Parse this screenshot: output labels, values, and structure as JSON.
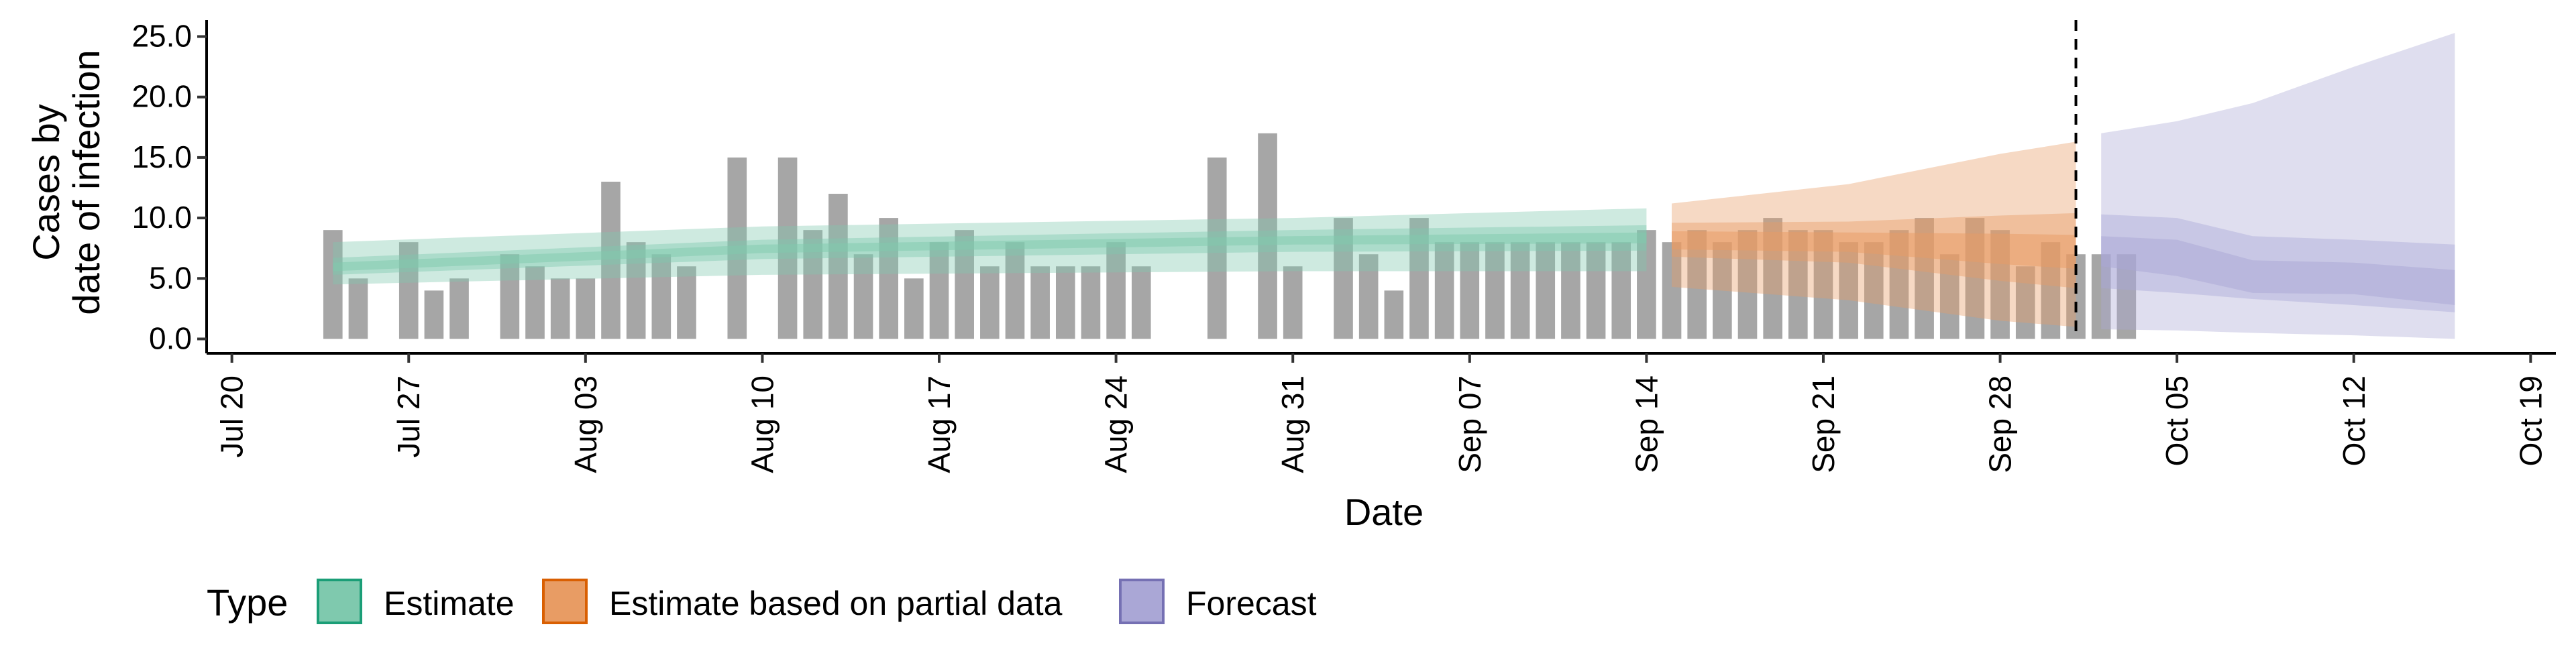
{
  "chart_data": {
    "type": "bar",
    "ylabel_lines": [
      "Cases by",
      "date of infection"
    ],
    "xlabel": "Date",
    "ylim": [
      0,
      26
    ],
    "yticks": [
      {
        "value": 0,
        "label": "0.0"
      },
      {
        "value": 5,
        "label": "5.0"
      },
      {
        "value": 10,
        "label": "10.0"
      },
      {
        "value": 15,
        "label": "15.0"
      },
      {
        "value": 20,
        "label": "20.0"
      },
      {
        "value": 25,
        "label": "25.0"
      }
    ],
    "xticks": [
      {
        "date": "2020-07-20",
        "label": "Jul 20"
      },
      {
        "date": "2020-07-27",
        "label": "Jul 27"
      },
      {
        "date": "2020-08-03",
        "label": "Aug 03"
      },
      {
        "date": "2020-08-10",
        "label": "Aug 10"
      },
      {
        "date": "2020-08-17",
        "label": "Aug 17"
      },
      {
        "date": "2020-08-24",
        "label": "Aug 24"
      },
      {
        "date": "2020-08-31",
        "label": "Aug 31"
      },
      {
        "date": "2020-09-07",
        "label": "Sep 07"
      },
      {
        "date": "2020-09-14",
        "label": "Sep 14"
      },
      {
        "date": "2020-09-21",
        "label": "Sep 21"
      },
      {
        "date": "2020-09-28",
        "label": "Sep 28"
      },
      {
        "date": "2020-10-05",
        "label": "Oct 05"
      },
      {
        "date": "2020-10-12",
        "label": "Oct 12"
      },
      {
        "date": "2020-10-19",
        "label": "Oct 19"
      }
    ],
    "xlim": [
      "2020-07-19",
      "2020-10-20"
    ],
    "bars": {
      "first_date": "2020-07-24",
      "values": [
        9,
        5,
        0,
        8,
        4,
        5,
        0,
        7,
        6,
        5,
        5,
        13,
        8,
        7,
        6,
        0,
        15,
        0,
        15,
        9,
        12,
        7,
        10,
        5,
        8,
        9,
        6,
        8,
        6,
        6,
        6,
        8,
        6,
        0,
        0,
        15,
        0,
        17,
        6,
        0,
        10,
        7,
        4,
        10,
        8,
        8,
        8,
        8,
        8,
        8,
        8,
        8,
        9,
        8,
        9,
        8,
        9,
        10,
        9,
        9,
        8,
        8,
        9,
        10,
        7,
        10,
        9,
        6,
        8,
        7,
        7,
        7
      ],
      "color": "#a6a6a6"
    },
    "forecast_line_date": "2020-10-01",
    "series": [
      {
        "name": "Estimate",
        "color": "#1b9e77",
        "fill": "#7fc9ae",
        "bands": [
          {
            "dates": [
              "2020-07-24",
              "2020-08-10",
              "2020-08-31",
              "2020-09-14"
            ],
            "lower": [
              4.5,
              5.3,
              5.6,
              5.6
            ],
            "upper": [
              8.0,
              9.3,
              10.0,
              10.8
            ]
          },
          {
            "dates": [
              "2020-07-24",
              "2020-08-10",
              "2020-08-31",
              "2020-09-14"
            ],
            "lower": [
              5.3,
              6.6,
              7.2,
              7.3
            ],
            "upper": [
              6.7,
              8.2,
              9.0,
              9.4
            ]
          },
          {
            "dates": [
              "2020-07-24",
              "2020-08-10",
              "2020-08-31",
              "2020-09-14"
            ],
            "lower": [
              5.6,
              7.1,
              7.8,
              7.9
            ],
            "upper": [
              6.3,
              7.8,
              8.5,
              8.8
            ]
          }
        ]
      },
      {
        "name": "Estimate based on partial data",
        "color": "#d95f02",
        "fill": "#e89c64",
        "bands": [
          {
            "dates": [
              "2020-09-15",
              "2020-09-22",
              "2020-09-28",
              "2020-10-01"
            ],
            "lower": [
              4.3,
              3.2,
              1.5,
              1.0
            ],
            "upper": [
              11.2,
              12.8,
              15.3,
              16.3
            ]
          },
          {
            "dates": [
              "2020-09-15",
              "2020-09-22",
              "2020-09-28",
              "2020-10-01"
            ],
            "lower": [
              6.8,
              6.3,
              4.8,
              4.2
            ],
            "upper": [
              9.6,
              9.7,
              10.2,
              10.4
            ]
          },
          {
            "dates": [
              "2020-09-15",
              "2020-09-22",
              "2020-09-28",
              "2020-10-01"
            ],
            "lower": [
              7.4,
              7.2,
              6.2,
              5.8
            ],
            "upper": [
              8.9,
              8.8,
              8.7,
              8.6
            ]
          }
        ]
      },
      {
        "name": "Forecast",
        "color": "#7570b3",
        "fill": "#aaa7d6",
        "bands": [
          {
            "dates": [
              "2020-10-02",
              "2020-10-05",
              "2020-10-08",
              "2020-10-12",
              "2020-10-16"
            ],
            "lower": [
              0.8,
              0.7,
              0.5,
              0.3,
              0.0
            ],
            "upper": [
              17.0,
              18.0,
              19.5,
              22.5,
              25.3
            ]
          },
          {
            "dates": [
              "2020-10-02",
              "2020-10-05",
              "2020-10-08",
              "2020-10-12",
              "2020-10-16"
            ],
            "lower": [
              4.2,
              3.8,
              3.3,
              2.8,
              2.2
            ],
            "upper": [
              10.3,
              10.0,
              8.5,
              8.2,
              7.8
            ]
          },
          {
            "dates": [
              "2020-10-02",
              "2020-10-05",
              "2020-10-08",
              "2020-10-12",
              "2020-10-16"
            ],
            "lower": [
              6.0,
              5.2,
              3.8,
              3.7,
              2.8
            ],
            "upper": [
              8.5,
              8.2,
              6.5,
              6.3,
              5.7
            ]
          }
        ]
      }
    ],
    "legend": {
      "title": "Type",
      "position": "bottom-left",
      "items": [
        "Estimate",
        "Estimate based on partial data",
        "Forecast"
      ]
    }
  }
}
